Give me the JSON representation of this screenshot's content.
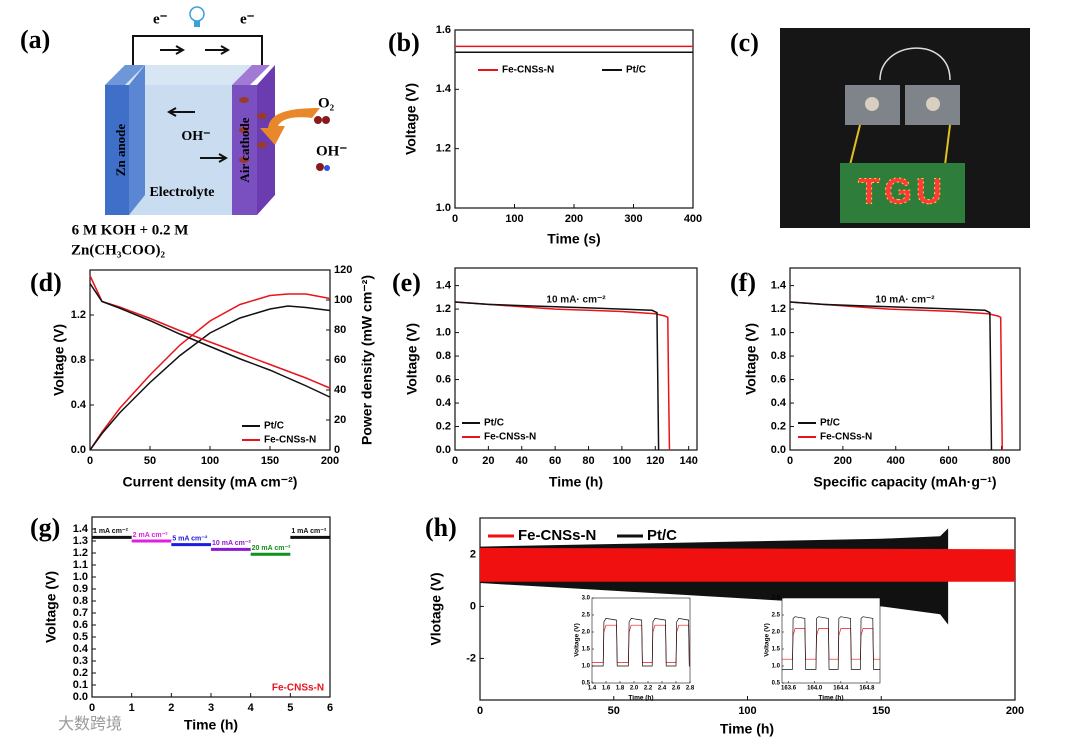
{
  "diagram": {
    "label": "(a)",
    "electron_left": "e⁻",
    "electron_right": "e⁻",
    "hydroxide": "OH⁻",
    "anode": "Zn anode",
    "cathode": "Air cathode",
    "electrolyte": "Electrolyte",
    "oxygen": "O₂",
    "hydroxide_out": "OH⁻",
    "composition": [
      "6 M KOH + 0.2 M",
      "Zn(CH₃COO)₂"
    ]
  },
  "photo": {
    "label": "(c)",
    "display": "TGU"
  },
  "watermark": "大数跨境",
  "chart_data": [
    {
      "type": "line",
      "label": "(b)",
      "xlabel": "Time (s)",
      "ylabel": "Voltage (V)",
      "xlim": [
        0,
        400
      ],
      "ylim": [
        1.0,
        1.6
      ],
      "xticks": [
        0,
        100,
        200,
        300,
        400
      ],
      "yticks": [
        {
          "value": 1,
          "label": "1.0"
        },
        1.2,
        1.4,
        1.6
      ],
      "series": [
        {
          "name": "Fe-CNSs-N",
          "color": "#e8141b",
          "x": [
            0,
            400
          ],
          "values": [
            1.545,
            1.545
          ]
        },
        {
          "name": "Pt/C",
          "color": "#111111",
          "x": [
            0,
            400
          ],
          "values": [
            1.525,
            1.525
          ]
        }
      ]
    },
    {
      "type": "line",
      "label": "(d)",
      "xlabel": "Current density (mA cm⁻²)",
      "ylabel": "Voltage (V)",
      "y2label": "Power density (mW cm⁻²)",
      "xlim": [
        0,
        200
      ],
      "ylim": [
        0,
        1.6
      ],
      "y2lim": [
        0,
        120
      ],
      "xticks": [
        0,
        50,
        100,
        150,
        200
      ],
      "yticks": [
        {
          "value": 0,
          "label": "0.0"
        },
        0.4,
        0.8,
        1.2
      ],
      "y2ticks": [
        0,
        20,
        40,
        60,
        80,
        100,
        120
      ],
      "series": [
        {
          "name": "Pt/C",
          "color": "#111111",
          "x": [
            0,
            10,
            25,
            50,
            75,
            100,
            125,
            150,
            165,
            180,
            200
          ],
          "values": [
            1.48,
            1.32,
            1.26,
            1.15,
            1.03,
            0.92,
            0.81,
            0.71,
            0.64,
            0.57,
            0.47
          ]
        },
        {
          "name": "Fe-CNSs-N",
          "color": "#e8141b",
          "x": [
            0,
            10,
            25,
            50,
            75,
            100,
            125,
            150,
            165,
            180,
            200
          ],
          "values": [
            1.55,
            1.32,
            1.27,
            1.17,
            1.06,
            0.96,
            0.86,
            0.76,
            0.7,
            0.64,
            0.55
          ]
        },
        {
          "name": "Pt/C",
          "color": "#111111",
          "axis": "y2",
          "x": [
            0,
            10,
            25,
            50,
            75,
            100,
            125,
            150,
            165,
            180,
            200
          ],
          "values": [
            0,
            11,
            25,
            45,
            63,
            78,
            88,
            94,
            96,
            95,
            93
          ]
        },
        {
          "name": "Fe-CNSs-N",
          "color": "#e8141b",
          "axis": "y2",
          "x": [
            0,
            10,
            25,
            50,
            75,
            100,
            125,
            150,
            165,
            180,
            200
          ],
          "values": [
            0,
            12,
            28,
            50,
            70,
            86,
            97,
            103,
            104,
            104,
            101
          ]
        }
      ]
    },
    {
      "type": "line",
      "label": "(e)",
      "xlabel": "Time (h)",
      "ylabel": "Voltage (V)",
      "annotation": "10 mA· cm⁻²",
      "xlim": [
        0,
        145
      ],
      "ylim": [
        0,
        1.55
      ],
      "xticks": [
        0,
        20,
        40,
        60,
        80,
        100,
        120,
        140
      ],
      "yticks": [
        {
          "value": 0,
          "label": "0.0"
        },
        0.2,
        0.4,
        0.6,
        0.8,
        {
          "value": 1,
          "label": "1.0"
        },
        1.2,
        1.4
      ],
      "series": [
        {
          "name": "Pt/C",
          "color": "#111111",
          "x": [
            0,
            20,
            40,
            60,
            80,
            100,
            118,
            121,
            121.5,
            122
          ],
          "values": [
            1.26,
            1.24,
            1.23,
            1.22,
            1.21,
            1.2,
            1.19,
            1.17,
            0.6,
            0
          ]
        },
        {
          "name": "Fe-CNSs-N",
          "color": "#e8141b",
          "x": [
            0,
            20,
            40,
            60,
            80,
            100,
            120,
            126,
            127.5,
            128,
            128.5
          ],
          "values": [
            1.26,
            1.24,
            1.22,
            1.2,
            1.19,
            1.18,
            1.16,
            1.14,
            1.13,
            0.5,
            0
          ]
        }
      ]
    },
    {
      "type": "line",
      "label": "(f)",
      "xlabel": "Specific capacity (mAh·g⁻¹)",
      "ylabel": "Voltage (V)",
      "annotation": "10 mA· cm⁻²",
      "xlim": [
        0,
        870
      ],
      "ylim": [
        0,
        1.55
      ],
      "xticks": [
        0,
        200,
        400,
        600,
        800
      ],
      "yticks": [
        {
          "value": 0,
          "label": "0.0"
        },
        0.2,
        0.4,
        0.6,
        0.8,
        {
          "value": 1,
          "label": "1.0"
        },
        1.2,
        1.4
      ],
      "series": [
        {
          "name": "Pt/C",
          "color": "#111111",
          "x": [
            0,
            125,
            250,
            375,
            500,
            625,
            738,
            756,
            759,
            762
          ],
          "values": [
            1.26,
            1.24,
            1.23,
            1.22,
            1.21,
            1.2,
            1.19,
            1.17,
            0.6,
            0
          ]
        },
        {
          "name": "Fe-CNSs-N",
          "color": "#e8141b",
          "x": [
            0,
            125,
            250,
            375,
            500,
            625,
            750,
            788,
            797,
            800,
            803
          ],
          "values": [
            1.26,
            1.24,
            1.22,
            1.2,
            1.19,
            1.18,
            1.16,
            1.14,
            1.13,
            0.5,
            0
          ]
        }
      ]
    },
    {
      "type": "line",
      "label": "(g)",
      "xlabel": "Time (h)",
      "ylabel": "Voltage (V)",
      "annotation": "Fe-CNSs-N",
      "annotation_color": "#e8141b",
      "xlim": [
        0,
        6
      ],
      "ylim": [
        0,
        1.5
      ],
      "xticks": [
        0,
        1,
        2,
        3,
        4,
        5,
        6
      ],
      "yticks": [
        {
          "value": 0,
          "label": "0.0"
        },
        0.1,
        0.2,
        0.3,
        0.4,
        0.5,
        0.6,
        0.7,
        0.8,
        0.9,
        {
          "value": 1,
          "label": "1.0"
        },
        1.1,
        1.2,
        1.3,
        1.4
      ],
      "series": [
        {
          "name": "1 mA cm⁻²",
          "color": "#111111",
          "x": [
            0,
            1
          ],
          "values": [
            1.33,
            1.33
          ]
        },
        {
          "name": "2 mA cm⁻²",
          "color": "#e020e0",
          "x": [
            1,
            2
          ],
          "values": [
            1.3,
            1.3
          ]
        },
        {
          "name": "5 mA cm⁻²",
          "color": "#1a1ae0",
          "x": [
            2,
            3
          ],
          "values": [
            1.27,
            1.27
          ]
        },
        {
          "name": "10 mA cm⁻²",
          "color": "#8a1ad0",
          "x": [
            3,
            4
          ],
          "values": [
            1.23,
            1.23
          ]
        },
        {
          "name": "20 mA cm⁻²",
          "color": "#12901a",
          "x": [
            4,
            5
          ],
          "values": [
            1.19,
            1.19
          ]
        },
        {
          "name": "1 mA cm⁻²",
          "color": "#111111",
          "x": [
            5,
            6
          ],
          "values": [
            1.33,
            1.33
          ]
        }
      ]
    },
    {
      "type": "band",
      "label": "(h)",
      "xlabel": "Time (h)",
      "ylabel": "Vlotage (V)",
      "xlim": [
        0,
        200
      ],
      "ylim": [
        -3.6,
        3.4
      ],
      "xticks": [
        0,
        50,
        100,
        150,
        200
      ],
      "yticks": [
        -2,
        0,
        2
      ],
      "series": [
        {
          "name": "Fe-CNSs-N",
          "color": "#f01010",
          "x": [
            0,
            200
          ],
          "upper": [
            2.25,
            2.2
          ],
          "lower": [
            0.95,
            0.95
          ]
        },
        {
          "name": "Pt/C",
          "color": "#111111",
          "x": [
            0,
            50,
            100,
            150,
            172,
            175
          ],
          "upper": [
            2.3,
            2.4,
            2.5,
            2.6,
            2.7,
            3.0
          ],
          "lower": [
            0.9,
            0.6,
            0.3,
            0,
            -0.3,
            -0.7
          ]
        }
      ]
    },
    {
      "type": "line",
      "xlabel": "Time (h)",
      "ylabel": "Voltage (V)",
      "xlim": [
        1.4,
        2.8
      ],
      "ylim": [
        0.5,
        3.0
      ],
      "xticks": [
        1.4,
        1.6,
        1.8,
        {
          "value": 2,
          "label": "2.0"
        },
        2.2,
        2.4,
        2.6,
        2.8
      ],
      "yticks": [
        0.5,
        {
          "value": 1,
          "label": "1.0"
        },
        1.5,
        {
          "value": 2,
          "label": "2.0"
        },
        2.5,
        {
          "value": 3,
          "label": "3.0"
        }
      ],
      "series": [
        {
          "color": "#111111",
          "x": [
            1.4,
            1.56,
            1.57,
            1.6,
            1.75,
            1.76,
            1.92,
            1.93,
            1.96,
            2.11,
            2.12,
            2.26,
            2.27,
            2.3,
            2.45,
            2.46,
            2.6,
            2.61,
            2.64,
            2.78,
            2.79,
            2.8
          ],
          "values": [
            1.0,
            1.0,
            2.3,
            2.4,
            2.35,
            1.0,
            1.0,
            2.3,
            2.4,
            2.35,
            1.0,
            1.0,
            2.3,
            2.4,
            2.35,
            1.0,
            1.0,
            2.3,
            2.4,
            2.35,
            1.0,
            1.0
          ]
        },
        {
          "color": "#e8141b",
          "x": [
            1.4,
            1.56,
            1.57,
            1.6,
            1.75,
            1.76,
            1.92,
            1.93,
            1.96,
            2.11,
            2.12,
            2.26,
            2.27,
            2.3,
            2.45,
            2.46,
            2.6,
            2.61,
            2.64,
            2.78,
            2.79,
            2.8
          ],
          "values": [
            1.1,
            1.1,
            2.0,
            2.2,
            2.2,
            1.1,
            1.1,
            2.0,
            2.2,
            2.2,
            1.1,
            1.1,
            2.0,
            2.2,
            2.2,
            1.1,
            1.1,
            2.0,
            2.2,
            2.2,
            1.1,
            1.1
          ]
        }
      ]
    },
    {
      "type": "line",
      "xlabel": "Time (h)",
      "ylabel": "Voltage (V)",
      "xlim": [
        163.5,
        165.0
      ],
      "ylim": [
        0.5,
        3.0
      ],
      "xticks": [
        163.6,
        {
          "value": 164,
          "label": "164.0"
        },
        164.4,
        164.8
      ],
      "yticks": [
        0.5,
        {
          "value": 1,
          "label": "1.0"
        },
        1.5,
        {
          "value": 2,
          "label": "2.0"
        },
        2.5,
        {
          "value": 3,
          "label": "3.0"
        }
      ],
      "series": [
        {
          "color": "#111111",
          "x": [
            163.5,
            163.66,
            163.67,
            163.7,
            163.85,
            163.86,
            164.02,
            164.03,
            164.06,
            164.21,
            164.22,
            164.36,
            164.37,
            164.4,
            164.55,
            164.56,
            164.7,
            164.71,
            164.74,
            164.89,
            164.9,
            165.0
          ],
          "values": [
            0.9,
            0.9,
            2.4,
            2.45,
            2.4,
            0.9,
            0.9,
            2.4,
            2.45,
            2.4,
            0.9,
            0.9,
            2.4,
            2.45,
            2.4,
            0.9,
            0.9,
            2.4,
            2.45,
            2.4,
            0.9,
            0.9
          ]
        },
        {
          "color": "#e8141b",
          "x": [
            163.5,
            163.66,
            163.67,
            163.7,
            163.85,
            163.86,
            164.02,
            164.03,
            164.06,
            164.21,
            164.22,
            164.36,
            164.37,
            164.4,
            164.55,
            164.56,
            164.7,
            164.71,
            164.74,
            164.89,
            164.9,
            165.0
          ],
          "values": [
            1.2,
            1.2,
            1.9,
            2.1,
            2.1,
            1.2,
            1.2,
            1.9,
            2.1,
            2.1,
            1.2,
            1.2,
            1.9,
            2.1,
            2.1,
            1.2,
            1.2,
            1.9,
            2.1,
            2.1,
            1.2,
            1.2
          ]
        }
      ]
    }
  ]
}
